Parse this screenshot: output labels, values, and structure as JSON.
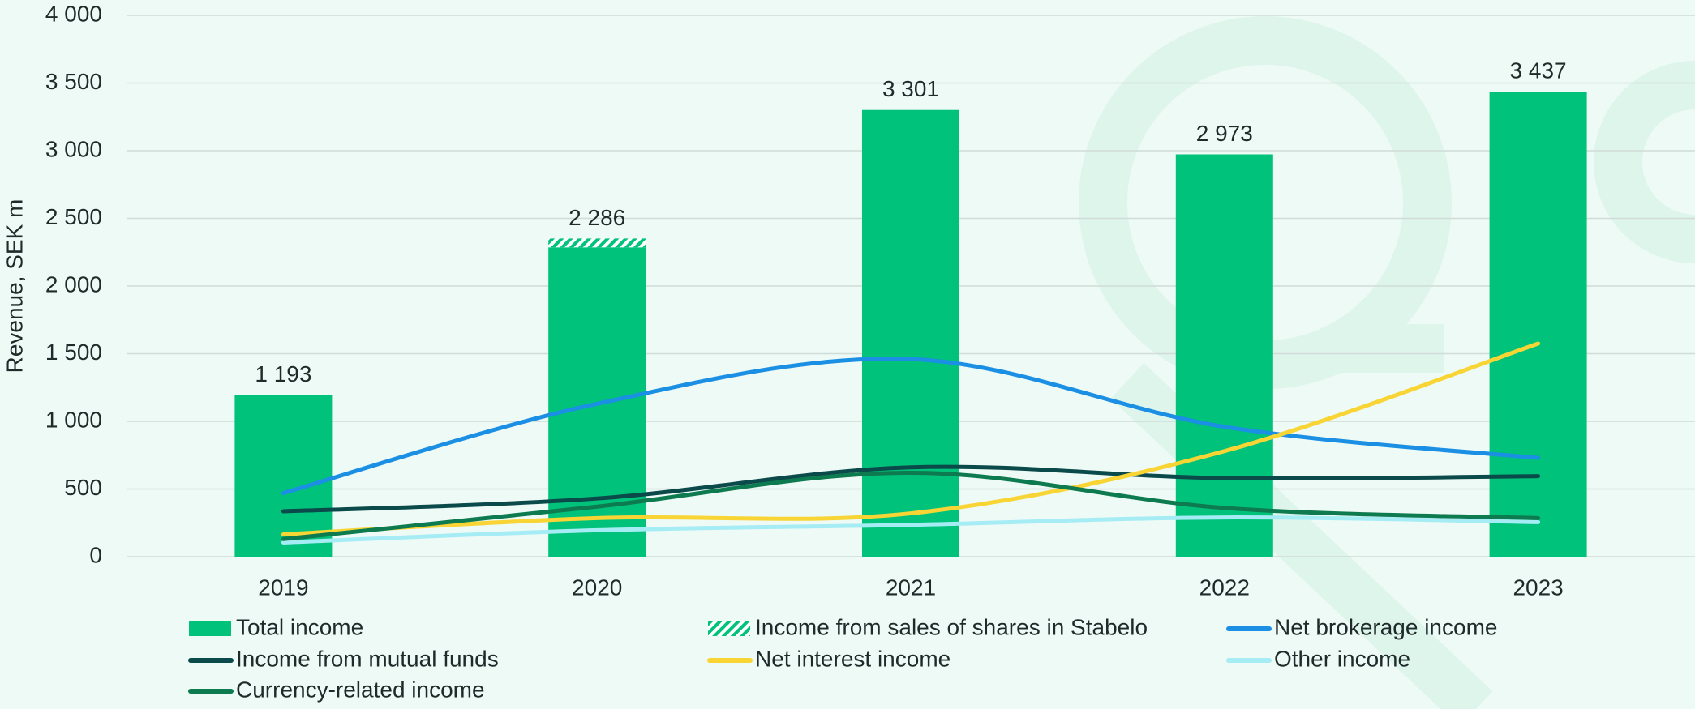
{
  "chart_data": {
    "type": "bar",
    "y_label": "Revenue, SEK m",
    "categories": [
      "2019",
      "2020",
      "2021",
      "2022",
      "2023"
    ],
    "ylim": [
      0,
      4000
    ],
    "yticks": [
      0,
      500,
      {
        "value": 1000,
        "label": "1 000"
      },
      {
        "value": 1500,
        "label": "1 500"
      },
      {
        "value": 2000,
        "label": "2 000"
      },
      {
        "value": 2500,
        "label": "2 500"
      },
      {
        "value": 3000,
        "label": "3 000"
      },
      {
        "value": 3500,
        "label": "3 500"
      },
      {
        "value": 4000,
        "label": "4 000"
      }
    ],
    "grid": true,
    "series": [
      {
        "name": "Total income",
        "type": "bar",
        "color": "#00c27a",
        "values": [
          1193,
          2286,
          3301,
          2973,
          3437
        ],
        "value_labels": [
          "1 193",
          "2 286",
          "3 301",
          "2 973",
          "3 437"
        ]
      },
      {
        "name": "Income from sales of shares in Stabelo",
        "type": "bar",
        "color": "#00c27a",
        "hatch": true,
        "values": [
          null,
          65,
          null,
          null,
          null
        ]
      },
      {
        "name": "Net brokerage income",
        "type": "line",
        "color": "#1a8fe3",
        "values": [
          470,
          1130,
          1460,
          960,
          730
        ]
      },
      {
        "name": "Income from mutual funds",
        "type": "line",
        "color": "#0b4a4a",
        "values": [
          335,
          430,
          660,
          580,
          595
        ]
      },
      {
        "name": "Net interest income",
        "type": "line",
        "color": "#f8d435",
        "values": [
          165,
          285,
          320,
          780,
          1575
        ]
      },
      {
        "name": "Other income",
        "type": "line",
        "color": "#a6ecf5",
        "values": [
          105,
          195,
          235,
          290,
          255
        ]
      },
      {
        "name": "Currency-related income",
        "type": "line",
        "color": "#0e7a50",
        "values": [
          130,
          370,
          620,
          360,
          285
        ]
      }
    ]
  }
}
